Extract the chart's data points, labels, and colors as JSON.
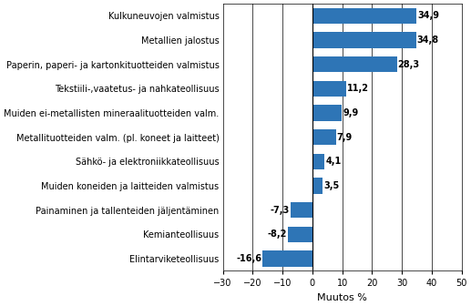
{
  "categories": [
    "Elintarviketeollisuus",
    "Kemianteollisuus",
    "Painaminen ja tallenteiden jäljentäminen",
    "Muiden koneiden ja laitteiden valmistus",
    "Sähkö- ja elektroniikkateollisuus",
    "Metallituotteiden valm. (pl. koneet ja laitteet)",
    "Muiden ei-metallisten mineraalituotteiden valm.",
    "Tekstiili-,vaatetus- ja nahkateollisuus",
    "Paperin, paperi- ja kartonkituotteiden valmistus",
    "Metallien jalostus",
    "Kulkuneuvojen valmistus"
  ],
  "values": [
    -16.6,
    -8.2,
    -7.3,
    3.5,
    4.1,
    7.9,
    9.9,
    11.2,
    28.3,
    34.8,
    34.9
  ],
  "bar_color": "#2E75B6",
  "xlabel": "Muutos %",
  "xlim": [
    -30,
    50
  ],
  "xticks": [
    -30,
    -20,
    -10,
    0,
    10,
    20,
    30,
    40,
    50
  ],
  "label_fontsize": 7,
  "value_fontsize": 7,
  "xlabel_fontsize": 8,
  "tick_fontsize": 7
}
